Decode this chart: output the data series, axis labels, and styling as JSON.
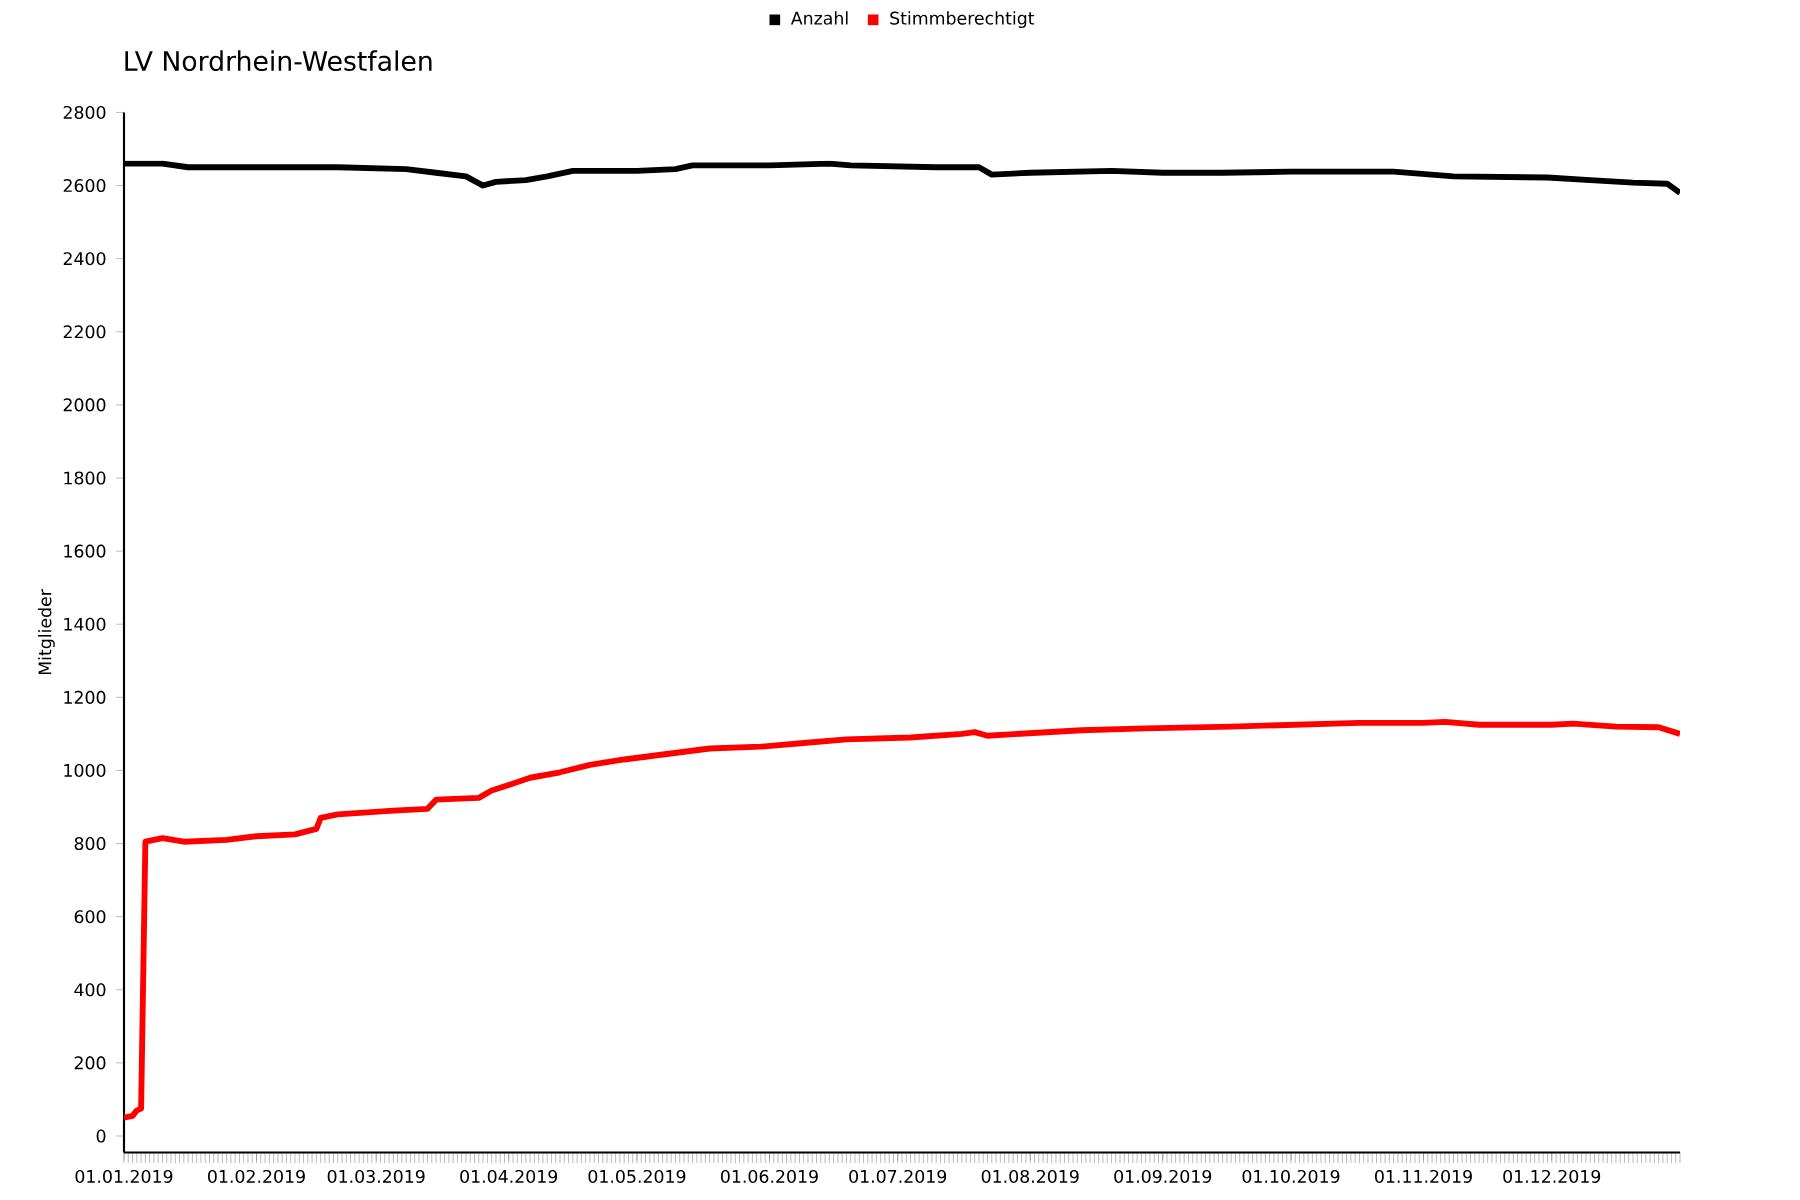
{
  "chart_data": {
    "type": "line",
    "title": "LV Nordrhein-Westfalen",
    "ylabel": "Mitglieder",
    "xlim": [
      "2019-01-01",
      "2019-12-31"
    ],
    "xticks": [
      {
        "value": "2019-01-01",
        "label": "01.01.2019"
      },
      {
        "value": "2019-02-01",
        "label": "01.02.2019"
      },
      {
        "value": "2019-03-01",
        "label": "01.03.2019"
      },
      {
        "value": "2019-04-01",
        "label": "01.04.2019"
      },
      {
        "value": "2019-05-01",
        "label": "01.05.2019"
      },
      {
        "value": "2019-06-01",
        "label": "01.06.2019"
      },
      {
        "value": "2019-07-01",
        "label": "01.07.2019"
      },
      {
        "value": "2019-08-01",
        "label": "01.08.2019"
      },
      {
        "value": "2019-09-01",
        "label": "01.09.2019"
      },
      {
        "value": "2019-10-01",
        "label": "01.10.2019"
      },
      {
        "value": "2019-11-01",
        "label": "01.11.2019"
      },
      {
        "value": "2019-12-01",
        "label": "01.12.2019"
      }
    ],
    "ylim": [
      -45,
      2800
    ],
    "yticks": [
      0,
      200,
      400,
      600,
      800,
      1000,
      1200,
      1400,
      1600,
      1800,
      2000,
      2200,
      2400,
      2600,
      2800
    ],
    "legend": "top",
    "grid": false,
    "marker": "none",
    "line_style": "solid",
    "series": [
      {
        "name": "Anzahl",
        "color": "#000000",
        "x": [
          "2019-01-01",
          "2019-01-10",
          "2019-01-16",
          "2019-02-20",
          "2019-03-08",
          "2019-03-15",
          "2019-03-22",
          "2019-03-26",
          "2019-03-29",
          "2019-04-05",
          "2019-04-10",
          "2019-04-16",
          "2019-05-01",
          "2019-05-10",
          "2019-05-14",
          "2019-06-01",
          "2019-06-15",
          "2019-06-20",
          "2019-07-10",
          "2019-07-20",
          "2019-07-23",
          "2019-08-01",
          "2019-08-20",
          "2019-09-01",
          "2019-09-15",
          "2019-10-01",
          "2019-10-25",
          "2019-11-08",
          "2019-11-30",
          "2019-12-10",
          "2019-12-20",
          "2019-12-28",
          "2019-12-31"
        ],
        "values": [
          2660,
          2660,
          2650,
          2650,
          2645,
          2635,
          2625,
          2600,
          2610,
          2615,
          2625,
          2640,
          2640,
          2645,
          2655,
          2655,
          2660,
          2655,
          2650,
          2650,
          2630,
          2635,
          2640,
          2635,
          2635,
          2638,
          2638,
          2625,
          2622,
          2615,
          2608,
          2605,
          2580
        ]
      },
      {
        "name": "Stimmberechtigt",
        "color": "#ff0000",
        "x": [
          "2019-01-01",
          "2019-01-03",
          "2019-01-04",
          "2019-01-05",
          "2019-01-06",
          "2019-01-10",
          "2019-01-15",
          "2019-01-25",
          "2019-02-01",
          "2019-02-10",
          "2019-02-15",
          "2019-02-16",
          "2019-02-20",
          "2019-03-05",
          "2019-03-13",
          "2019-03-15",
          "2019-03-25",
          "2019-03-28",
          "2019-04-01",
          "2019-04-06",
          "2019-04-13",
          "2019-04-20",
          "2019-04-28",
          "2019-05-08",
          "2019-05-18",
          "2019-05-30",
          "2019-06-09",
          "2019-06-19",
          "2019-07-04",
          "2019-07-16",
          "2019-07-19",
          "2019-07-22",
          "2019-08-13",
          "2019-08-28",
          "2019-09-17",
          "2019-10-02",
          "2019-10-17",
          "2019-11-01",
          "2019-11-06",
          "2019-11-14",
          "2019-12-01",
          "2019-12-06",
          "2019-12-16",
          "2019-12-26",
          "2019-12-31"
        ],
        "values": [
          50,
          55,
          70,
          75,
          805,
          815,
          805,
          810,
          820,
          825,
          840,
          870,
          880,
          890,
          895,
          920,
          925,
          945,
          960,
          980,
          995,
          1015,
          1030,
          1045,
          1060,
          1065,
          1075,
          1085,
          1090,
          1100,
          1105,
          1095,
          1110,
          1115,
          1120,
          1125,
          1130,
          1130,
          1133,
          1125,
          1125,
          1128,
          1120,
          1118,
          1100
        ]
      }
    ]
  }
}
